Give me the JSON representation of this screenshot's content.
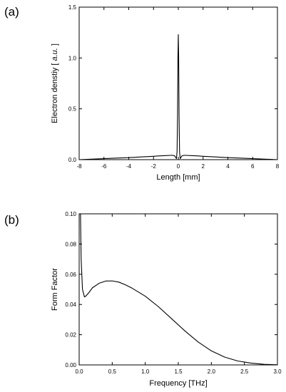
{
  "chart_data": [
    {
      "panel": "(a)",
      "type": "line",
      "xlabel": "Length [mm]",
      "ylabel_prefix": "Electron denstiy [ ",
      "ylabel_italic": "a.u.",
      "ylabel_suffix": " ]",
      "xlim": [
        -8,
        8
      ],
      "ylim": [
        0,
        1.5
      ],
      "x_ticks": [
        -8,
        -6,
        -4,
        -2,
        0,
        2,
        4,
        6,
        8
      ],
      "y_ticks": [
        "0.0",
        "0.5",
        "1.0",
        "1.5"
      ],
      "series": [
        {
          "x": [
            -8,
            -7,
            -6,
            -5,
            -4,
            -3,
            -2,
            -1.5,
            -1,
            -0.5,
            -0.3,
            -0.2,
            -0.15,
            -0.1,
            -0.06,
            -0.03,
            0,
            0.03,
            0.06,
            0.1,
            0.15,
            0.2,
            0.3,
            0.5,
            1,
            1.5,
            2,
            3,
            4,
            5,
            6,
            7,
            8
          ],
          "y": [
            0.0,
            0.005,
            0.01,
            0.015,
            0.02,
            0.027,
            0.033,
            0.037,
            0.04,
            0.043,
            0.038,
            0.02,
            0.01,
            0.08,
            0.45,
            1.0,
            1.23,
            1.0,
            0.45,
            0.08,
            0.01,
            0.02,
            0.038,
            0.043,
            0.04,
            0.037,
            0.033,
            0.027,
            0.02,
            0.015,
            0.01,
            0.005,
            0.0
          ]
        }
      ]
    },
    {
      "panel": "(b)",
      "type": "line",
      "xlabel": "Frequency [THz]",
      "ylabel": "Form Factor",
      "xlim": [
        0,
        3.0
      ],
      "ylim": [
        0,
        0.1
      ],
      "x_ticks": [
        "0.0",
        "0.5",
        "1.0",
        "1.5",
        "2.0",
        "2.5",
        "3.0"
      ],
      "y_ticks": [
        "0.00",
        "0.02",
        "0.04",
        "0.06",
        "0.08",
        "0.10"
      ],
      "series": [
        {
          "x": [
            0.02,
            0.03,
            0.05,
            0.08,
            0.1,
            0.15,
            0.2,
            0.3,
            0.4,
            0.5,
            0.6,
            0.7,
            0.8,
            1.0,
            1.2,
            1.4,
            1.6,
            1.8,
            2.0,
            2.2,
            2.4,
            2.6,
            2.8,
            3.0
          ],
          "y": [
            0.1,
            0.07,
            0.05,
            0.045,
            0.0455,
            0.048,
            0.051,
            0.054,
            0.0555,
            0.0556,
            0.0548,
            0.053,
            0.0508,
            0.0455,
            0.0385,
            0.0305,
            0.0225,
            0.0152,
            0.0093,
            0.0052,
            0.0026,
            0.0012,
            0.0004,
            0.0001
          ]
        }
      ]
    }
  ]
}
